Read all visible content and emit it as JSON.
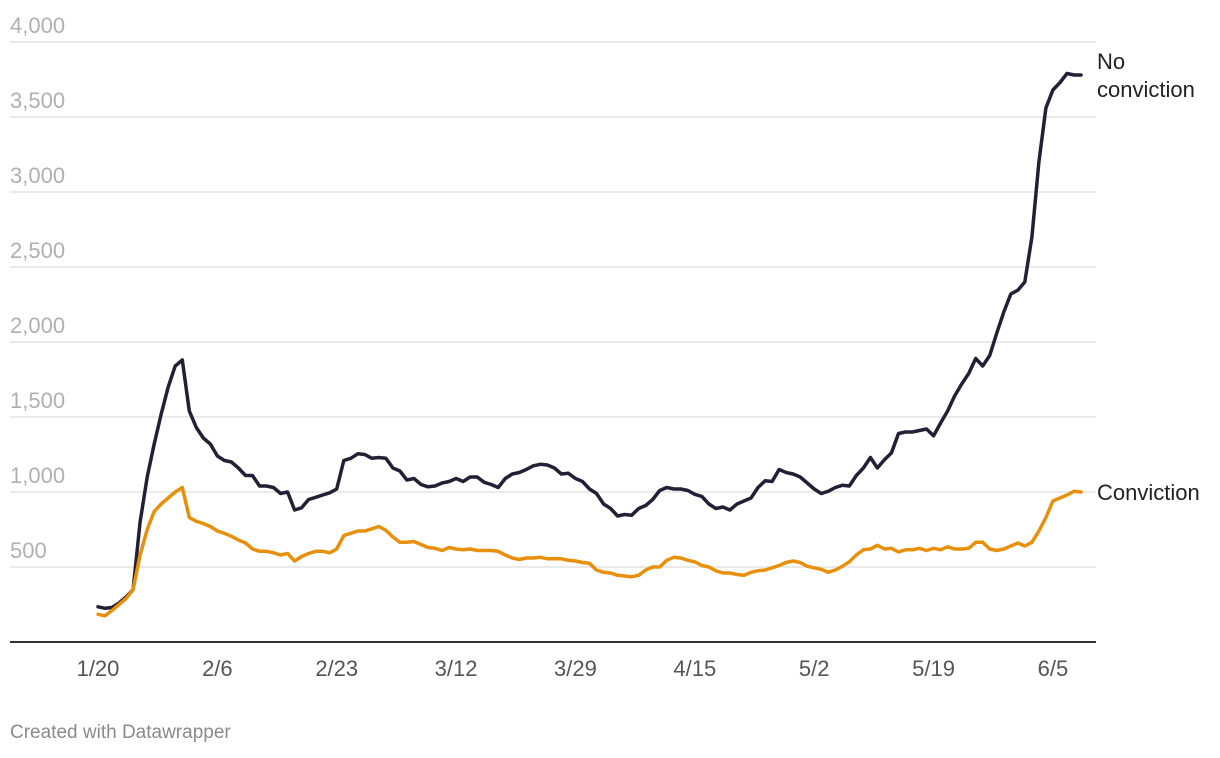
{
  "chart_data": {
    "type": "line",
    "y_ticks": [
      500,
      1000,
      1500,
      2000,
      2500,
      3000,
      3500,
      4000
    ],
    "y_tick_labels": [
      "500",
      "1,000",
      "1,500",
      "2,000",
      "2,500",
      "3,000",
      "3,500",
      "4,000"
    ],
    "ylim": [
      0,
      4000
    ],
    "x_range": [
      0,
      139
    ],
    "x_ticks": [
      {
        "label": "1/20",
        "day": 0
      },
      {
        "label": "2/6",
        "day": 17
      },
      {
        "label": "2/23",
        "day": 34
      },
      {
        "label": "3/12",
        "day": 51
      },
      {
        "label": "3/29",
        "day": 68
      },
      {
        "label": "4/15",
        "day": 85
      },
      {
        "label": "5/2",
        "day": 102
      },
      {
        "label": "5/19",
        "day": 119
      },
      {
        "label": "6/5",
        "day": 136
      }
    ],
    "series": [
      {
        "name": "No conviction",
        "label_lines": [
          "No",
          "conviction"
        ],
        "color": "#231f35",
        "points": [
          [
            0,
            235
          ],
          [
            1,
            225
          ],
          [
            2,
            230
          ],
          [
            3,
            260
          ],
          [
            4,
            300
          ],
          [
            5,
            350
          ],
          [
            6,
            800
          ],
          [
            7,
            1100
          ],
          [
            8,
            1320
          ],
          [
            9,
            1520
          ],
          [
            10,
            1700
          ],
          [
            11,
            1840
          ],
          [
            12,
            1880
          ],
          [
            13,
            1540
          ],
          [
            14,
            1430
          ],
          [
            15,
            1360
          ],
          [
            16,
            1320
          ],
          [
            17,
            1240
          ],
          [
            18,
            1210
          ],
          [
            19,
            1200
          ],
          [
            20,
            1160
          ],
          [
            21,
            1110
          ],
          [
            22,
            1110
          ],
          [
            23,
            1040
          ],
          [
            24,
            1040
          ],
          [
            25,
            1030
          ],
          [
            26,
            990
          ],
          [
            27,
            1000
          ],
          [
            28,
            880
          ],
          [
            29,
            895
          ],
          [
            30,
            950
          ],
          [
            31,
            965
          ],
          [
            32,
            980
          ],
          [
            33,
            995
          ],
          [
            34,
            1020
          ],
          [
            35,
            1210
          ],
          [
            36,
            1225
          ],
          [
            37,
            1255
          ],
          [
            38,
            1250
          ],
          [
            39,
            1225
          ],
          [
            40,
            1230
          ],
          [
            41,
            1225
          ],
          [
            42,
            1160
          ],
          [
            43,
            1140
          ],
          [
            44,
            1080
          ],
          [
            45,
            1090
          ],
          [
            46,
            1050
          ],
          [
            47,
            1035
          ],
          [
            48,
            1040
          ],
          [
            49,
            1060
          ],
          [
            50,
            1070
          ],
          [
            51,
            1090
          ],
          [
            52,
            1070
          ],
          [
            53,
            1100
          ],
          [
            54,
            1100
          ],
          [
            55,
            1065
          ],
          [
            56,
            1050
          ],
          [
            57,
            1030
          ],
          [
            58,
            1090
          ],
          [
            59,
            1120
          ],
          [
            60,
            1130
          ],
          [
            61,
            1150
          ],
          [
            62,
            1175
          ],
          [
            63,
            1185
          ],
          [
            64,
            1180
          ],
          [
            65,
            1160
          ],
          [
            66,
            1120
          ],
          [
            67,
            1125
          ],
          [
            68,
            1090
          ],
          [
            69,
            1070
          ],
          [
            70,
            1020
          ],
          [
            71,
            990
          ],
          [
            72,
            920
          ],
          [
            73,
            890
          ],
          [
            74,
            840
          ],
          [
            75,
            850
          ],
          [
            76,
            845
          ],
          [
            77,
            890
          ],
          [
            78,
            910
          ],
          [
            79,
            950
          ],
          [
            80,
            1010
          ],
          [
            81,
            1030
          ],
          [
            82,
            1020
          ],
          [
            83,
            1020
          ],
          [
            84,
            1010
          ],
          [
            85,
            985
          ],
          [
            86,
            970
          ],
          [
            87,
            920
          ],
          [
            88,
            890
          ],
          [
            89,
            900
          ],
          [
            90,
            880
          ],
          [
            91,
            920
          ],
          [
            92,
            940
          ],
          [
            93,
            960
          ],
          [
            94,
            1030
          ],
          [
            95,
            1075
          ],
          [
            96,
            1070
          ],
          [
            97,
            1150
          ],
          [
            98,
            1130
          ],
          [
            99,
            1120
          ],
          [
            100,
            1100
          ],
          [
            101,
            1060
          ],
          [
            102,
            1020
          ],
          [
            103,
            990
          ],
          [
            104,
            1005
          ],
          [
            105,
            1030
          ],
          [
            106,
            1045
          ],
          [
            107,
            1040
          ],
          [
            108,
            1110
          ],
          [
            109,
            1160
          ],
          [
            110,
            1230
          ],
          [
            111,
            1160
          ],
          [
            112,
            1215
          ],
          [
            113,
            1260
          ],
          [
            114,
            1390
          ],
          [
            115,
            1400
          ],
          [
            116,
            1400
          ],
          [
            117,
            1410
          ],
          [
            118,
            1420
          ],
          [
            119,
            1375
          ],
          [
            120,
            1460
          ],
          [
            121,
            1540
          ],
          [
            122,
            1640
          ],
          [
            123,
            1720
          ],
          [
            124,
            1790
          ],
          [
            125,
            1890
          ],
          [
            126,
            1840
          ],
          [
            127,
            1910
          ],
          [
            128,
            2060
          ],
          [
            129,
            2200
          ],
          [
            130,
            2320
          ],
          [
            131,
            2345
          ],
          [
            132,
            2400
          ],
          [
            133,
            2700
          ],
          [
            134,
            3200
          ],
          [
            135,
            3560
          ],
          [
            136,
            3680
          ],
          [
            137,
            3730
          ],
          [
            138,
            3790
          ],
          [
            139,
            3780
          ],
          [
            140,
            3780
          ]
        ]
      },
      {
        "name": "Conviction",
        "label_lines": [
          "Conviction"
        ],
        "color": "#e8900c",
        "points": [
          [
            0,
            185
          ],
          [
            1,
            175
          ],
          [
            2,
            210
          ],
          [
            3,
            250
          ],
          [
            4,
            290
          ],
          [
            5,
            350
          ],
          [
            6,
            580
          ],
          [
            7,
            750
          ],
          [
            8,
            870
          ],
          [
            9,
            920
          ],
          [
            10,
            960
          ],
          [
            11,
            1000
          ],
          [
            12,
            1030
          ],
          [
            13,
            830
          ],
          [
            14,
            805
          ],
          [
            15,
            790
          ],
          [
            16,
            770
          ],
          [
            17,
            740
          ],
          [
            18,
            725
          ],
          [
            19,
            705
          ],
          [
            20,
            680
          ],
          [
            21,
            660
          ],
          [
            22,
            620
          ],
          [
            23,
            605
          ],
          [
            24,
            605
          ],
          [
            25,
            595
          ],
          [
            26,
            580
          ],
          [
            27,
            590
          ],
          [
            28,
            540
          ],
          [
            29,
            570
          ],
          [
            30,
            590
          ],
          [
            31,
            605
          ],
          [
            32,
            605
          ],
          [
            33,
            595
          ],
          [
            34,
            620
          ],
          [
            35,
            710
          ],
          [
            36,
            725
          ],
          [
            37,
            740
          ],
          [
            38,
            740
          ],
          [
            39,
            755
          ],
          [
            40,
            770
          ],
          [
            41,
            745
          ],
          [
            42,
            700
          ],
          [
            43,
            665
          ],
          [
            44,
            665
          ],
          [
            45,
            670
          ],
          [
            46,
            650
          ],
          [
            47,
            630
          ],
          [
            48,
            625
          ],
          [
            49,
            610
          ],
          [
            50,
            630
          ],
          [
            51,
            620
          ],
          [
            52,
            615
          ],
          [
            53,
            620
          ],
          [
            54,
            610
          ],
          [
            55,
            610
          ],
          [
            56,
            610
          ],
          [
            57,
            605
          ],
          [
            58,
            580
          ],
          [
            59,
            560
          ],
          [
            60,
            550
          ],
          [
            61,
            560
          ],
          [
            62,
            560
          ],
          [
            63,
            565
          ],
          [
            64,
            555
          ],
          [
            65,
            555
          ],
          [
            66,
            555
          ],
          [
            67,
            545
          ],
          [
            68,
            540
          ],
          [
            69,
            530
          ],
          [
            70,
            525
          ],
          [
            71,
            480
          ],
          [
            72,
            465
          ],
          [
            73,
            460
          ],
          [
            74,
            445
          ],
          [
            75,
            440
          ],
          [
            76,
            435
          ],
          [
            77,
            445
          ],
          [
            78,
            480
          ],
          [
            79,
            500
          ],
          [
            80,
            500
          ],
          [
            81,
            545
          ],
          [
            82,
            565
          ],
          [
            83,
            560
          ],
          [
            84,
            545
          ],
          [
            85,
            535
          ],
          [
            86,
            510
          ],
          [
            87,
            500
          ],
          [
            88,
            475
          ],
          [
            89,
            460
          ],
          [
            90,
            460
          ],
          [
            91,
            450
          ],
          [
            92,
            445
          ],
          [
            93,
            465
          ],
          [
            94,
            475
          ],
          [
            95,
            480
          ],
          [
            96,
            495
          ],
          [
            97,
            510
          ],
          [
            98,
            530
          ],
          [
            99,
            540
          ],
          [
            100,
            530
          ],
          [
            101,
            505
          ],
          [
            102,
            495
          ],
          [
            103,
            485
          ],
          [
            104,
            465
          ],
          [
            105,
            480
          ],
          [
            106,
            505
          ],
          [
            107,
            535
          ],
          [
            108,
            580
          ],
          [
            109,
            615
          ],
          [
            110,
            620
          ],
          [
            111,
            645
          ],
          [
            112,
            620
          ],
          [
            113,
            625
          ],
          [
            114,
            600
          ],
          [
            115,
            615
          ],
          [
            116,
            615
          ],
          [
            117,
            625
          ],
          [
            118,
            610
          ],
          [
            119,
            625
          ],
          [
            120,
            615
          ],
          [
            121,
            635
          ],
          [
            122,
            620
          ],
          [
            123,
            620
          ],
          [
            124,
            625
          ],
          [
            125,
            665
          ],
          [
            126,
            665
          ],
          [
            127,
            620
          ],
          [
            128,
            610
          ],
          [
            129,
            620
          ],
          [
            130,
            640
          ],
          [
            131,
            660
          ],
          [
            132,
            640
          ],
          [
            133,
            665
          ],
          [
            134,
            740
          ],
          [
            135,
            830
          ],
          [
            136,
            940
          ],
          [
            137,
            960
          ],
          [
            138,
            980
          ],
          [
            139,
            1005
          ],
          [
            140,
            1000
          ]
        ]
      }
    ],
    "legend": "inline-right",
    "grid": true
  },
  "footer": {
    "credit": "Created with Datawrapper"
  }
}
